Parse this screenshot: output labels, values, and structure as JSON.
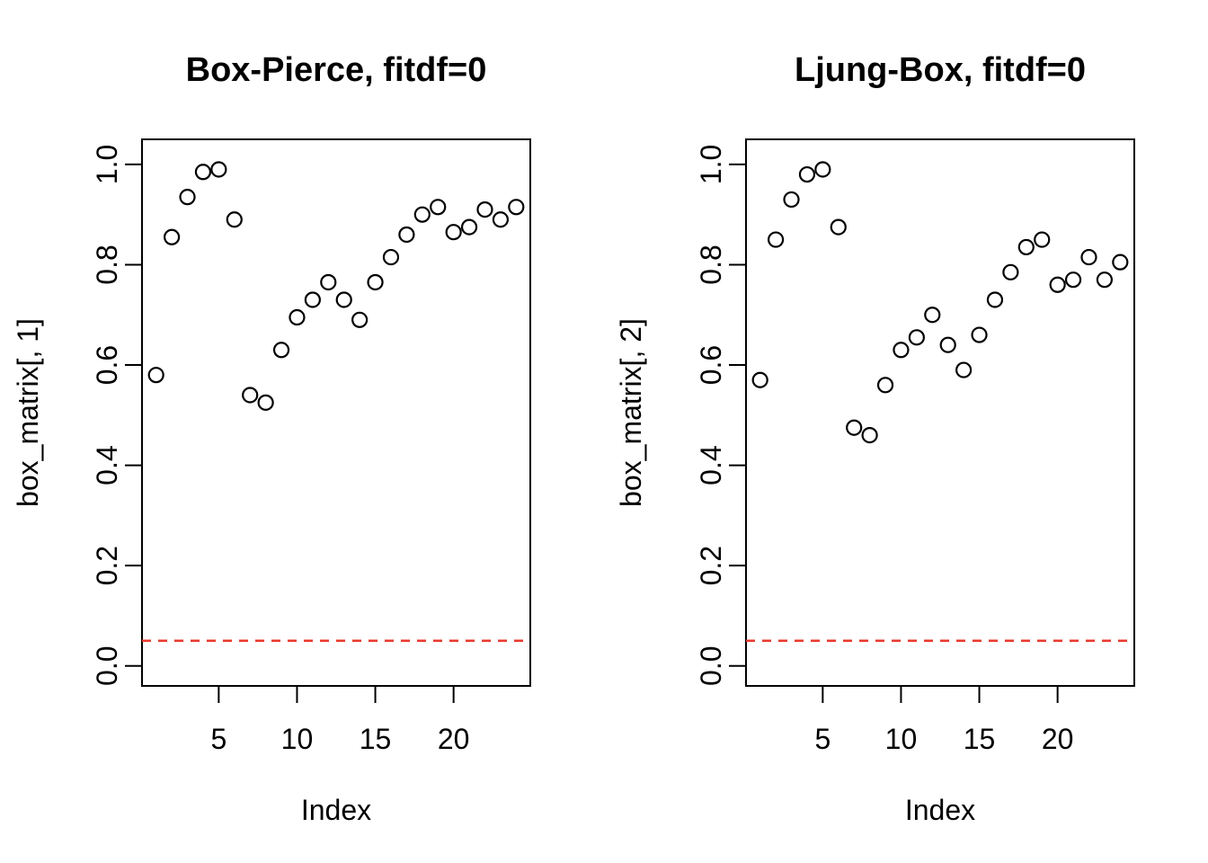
{
  "figure": {
    "background": "#ffffff",
    "axis_color": "#000000",
    "point_color": "#000000"
  },
  "chart_data": [
    {
      "type": "scatter",
      "title": "Box-Pierce, fitdf=0",
      "xlabel": "Index",
      "ylabel": "box_matrix[, 1]",
      "x": [
        1,
        2,
        3,
        4,
        5,
        6,
        7,
        8,
        9,
        10,
        11,
        12,
        13,
        14,
        15,
        16,
        17,
        18,
        19,
        20,
        21,
        22,
        23,
        24
      ],
      "y": [
        0.58,
        0.855,
        0.935,
        0.985,
        0.99,
        0.89,
        0.54,
        0.525,
        0.63,
        0.695,
        0.73,
        0.765,
        0.73,
        0.69,
        0.765,
        0.815,
        0.86,
        0.9,
        0.915,
        0.865,
        0.875,
        0.91,
        0.89,
        0.915
      ],
      "xticks": [
        5,
        10,
        15,
        20
      ],
      "yticks": [
        0.0,
        0.2,
        0.4,
        0.6,
        0.8,
        1.0
      ],
      "xlim": [
        0.1,
        24.9
      ],
      "ylim": [
        -0.04,
        1.05
      ],
      "grid": false,
      "legend": null,
      "marker": "open-circle",
      "hline": {
        "y": 0.05,
        "color": "#e9392e",
        "style": "dashed"
      }
    },
    {
      "type": "scatter",
      "title": "Ljung-Box, fitdf=0",
      "xlabel": "Index",
      "ylabel": "box_matrix[, 2]",
      "x": [
        1,
        2,
        3,
        4,
        5,
        6,
        7,
        8,
        9,
        10,
        11,
        12,
        13,
        14,
        15,
        16,
        17,
        18,
        19,
        20,
        21,
        22,
        23,
        24
      ],
      "y": [
        0.57,
        0.85,
        0.93,
        0.98,
        0.99,
        0.875,
        0.475,
        0.46,
        0.56,
        0.63,
        0.655,
        0.7,
        0.64,
        0.59,
        0.66,
        0.73,
        0.785,
        0.835,
        0.85,
        0.76,
        0.77,
        0.815,
        0.77,
        0.805
      ],
      "xticks": [
        5,
        10,
        15,
        20
      ],
      "yticks": [
        0.0,
        0.2,
        0.4,
        0.6,
        0.8,
        1.0
      ],
      "xlim": [
        0.1,
        24.9
      ],
      "ylim": [
        -0.04,
        1.05
      ],
      "grid": false,
      "legend": null,
      "marker": "open-circle",
      "hline": {
        "y": 0.05,
        "color": "#e9392e",
        "style": "dashed"
      }
    }
  ]
}
